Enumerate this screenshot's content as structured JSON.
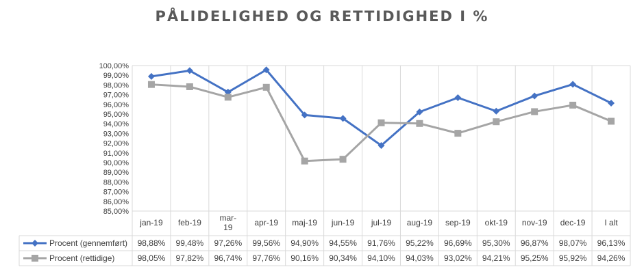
{
  "chart_data": {
    "type": "line",
    "title": "PÅLIDELIGHED OG RETTIDIGHED I %",
    "xlabel": "",
    "ylabel": "",
    "ylim": [
      85,
      100
    ],
    "y_ticks": [
      "100,00%",
      "99,00%",
      "98,00%",
      "97,00%",
      "96,00%",
      "95,00%",
      "94,00%",
      "93,00%",
      "92,00%",
      "91,00%",
      "90,00%",
      "89,00%",
      "88,00%",
      "87,00%",
      "86,00%",
      "85,00%"
    ],
    "y_tick_values": [
      100,
      99,
      98,
      97,
      96,
      95,
      94,
      93,
      92,
      91,
      90,
      89,
      88,
      87,
      86,
      85
    ],
    "categories": [
      [
        "jan-19"
      ],
      [
        "feb-19"
      ],
      [
        "mar-",
        "19"
      ],
      [
        "apr-19"
      ],
      [
        "maj-19"
      ],
      [
        "jun-19"
      ],
      [
        "jul-19"
      ],
      [
        "aug-19"
      ],
      [
        "sep-19"
      ],
      [
        "okt-19"
      ],
      [
        "nov-19"
      ],
      [
        "dec-19"
      ],
      [
        "I alt"
      ]
    ],
    "grid": true,
    "legend": "data-table",
    "series": [
      {
        "name": "Procent (gennemført)",
        "color": "#4472C4",
        "marker": "diamond",
        "values": [
          98.88,
          99.48,
          97.26,
          99.56,
          94.9,
          94.55,
          91.76,
          95.22,
          96.69,
          95.3,
          96.87,
          98.07,
          96.13
        ],
        "labels": [
          "98,88%",
          "99,48%",
          "97,26%",
          "99,56%",
          "94,90%",
          "94,55%",
          "91,76%",
          "95,22%",
          "96,69%",
          "95,30%",
          "96,87%",
          "98,07%",
          "96,13%"
        ]
      },
      {
        "name": "Procent (rettidige)",
        "color": "#A5A5A5",
        "marker": "square",
        "values": [
          98.05,
          97.82,
          96.74,
          97.76,
          90.16,
          90.34,
          94.1,
          94.03,
          93.02,
          94.21,
          95.25,
          95.92,
          94.26
        ],
        "labels": [
          "98,05%",
          "97,82%",
          "96,74%",
          "97,76%",
          "90,16%",
          "90,34%",
          "94,10%",
          "94,03%",
          "93,02%",
          "94,21%",
          "95,25%",
          "95,92%",
          "94,26%"
        ]
      }
    ]
  }
}
